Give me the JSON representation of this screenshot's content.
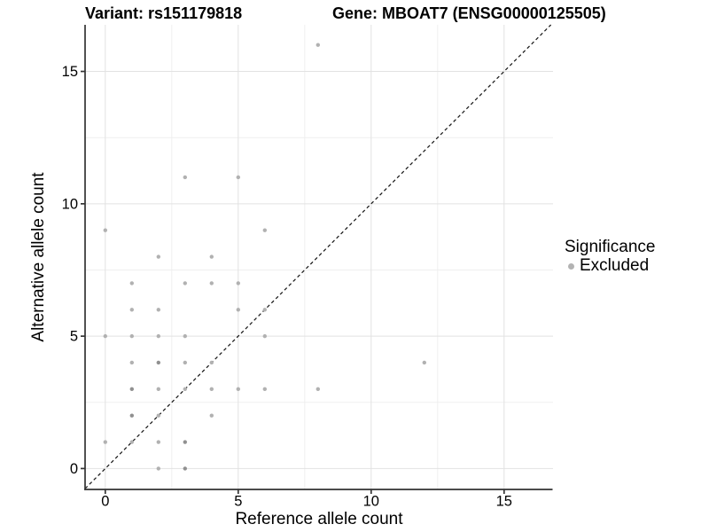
{
  "header": {
    "variant_title": "Variant: rs151179818",
    "gene_title": "Gene: MBOAT7 (ENSG00000125505)"
  },
  "axes": {
    "x_label": "Reference allele count",
    "y_label": "Alternative allele count",
    "x_major_ticks": [
      0,
      5,
      10,
      15
    ],
    "y_major_ticks": [
      0,
      5,
      10,
      15
    ],
    "x_minor_ticks": [
      2.5,
      7.5,
      12.5
    ],
    "y_minor_ticks": [
      2.5,
      7.5,
      12.5
    ]
  },
  "legend": {
    "title": "Significance",
    "items": [
      {
        "label": "Excluded",
        "color": "#b3b3b3"
      }
    ]
  },
  "colors": {
    "point": "#b1b1b1",
    "point_overlapped": "#909090",
    "major_gridline": "#e2e2e2",
    "minor_gridline": "#efefef",
    "axis_line": "#333333",
    "identity_line": "#1a1a1a",
    "text": "#000000"
  },
  "chart_data": {
    "type": "scatter",
    "title": "Variant: rs151179818 / Gene: MBOAT7 (ENSG00000125505)",
    "xlabel": "Reference allele count",
    "ylabel": "Alternative allele count",
    "xlim": [
      -0.76,
      16.84
    ],
    "ylim": [
      -0.79,
      16.76
    ],
    "x_major_ticks": [
      0,
      5,
      10,
      15
    ],
    "y_major_ticks": [
      0,
      5,
      10,
      15
    ],
    "x_minor_ticks": [
      2.5,
      7.5,
      12.5
    ],
    "y_minor_ticks": [
      2.5,
      7.5,
      12.5
    ],
    "grid": true,
    "legend_position": "right",
    "identity_line": {
      "type": "dashed",
      "equation": "y = x"
    },
    "series": [
      {
        "name": "Excluded",
        "point_format": "[reference_allele_count, alternative_allele_count, apparent_overlap_weight]",
        "points": [
          [
            0,
            1,
            1
          ],
          [
            0,
            5,
            1
          ],
          [
            0,
            9,
            1
          ],
          [
            1,
            1,
            1
          ],
          [
            1,
            2,
            2
          ],
          [
            1,
            3,
            2
          ],
          [
            1,
            4,
            1
          ],
          [
            1,
            5,
            1
          ],
          [
            1,
            6,
            1
          ],
          [
            1,
            7,
            1
          ],
          [
            2,
            0,
            1
          ],
          [
            2,
            1,
            1
          ],
          [
            2,
            2,
            1
          ],
          [
            2,
            3,
            1
          ],
          [
            2,
            4,
            2
          ],
          [
            2,
            5,
            1
          ],
          [
            2,
            6,
            1
          ],
          [
            2,
            8,
            1
          ],
          [
            3,
            0,
            2
          ],
          [
            3,
            1,
            2
          ],
          [
            3,
            3,
            1
          ],
          [
            3,
            4,
            1
          ],
          [
            3,
            5,
            1
          ],
          [
            3,
            7,
            1
          ],
          [
            3,
            11,
            1
          ],
          [
            4,
            2,
            1
          ],
          [
            4,
            3,
            1
          ],
          [
            4,
            4,
            1
          ],
          [
            4,
            7,
            1
          ],
          [
            4,
            8,
            1
          ],
          [
            5,
            3,
            1
          ],
          [
            5,
            6,
            1
          ],
          [
            5,
            7,
            1
          ],
          [
            5,
            11,
            1
          ],
          [
            6,
            3,
            1
          ],
          [
            6,
            5,
            1
          ],
          [
            6,
            6,
            1
          ],
          [
            6,
            9,
            1
          ],
          [
            8,
            3,
            1
          ],
          [
            8,
            16,
            1
          ],
          [
            12,
            4,
            1
          ]
        ]
      }
    ]
  }
}
